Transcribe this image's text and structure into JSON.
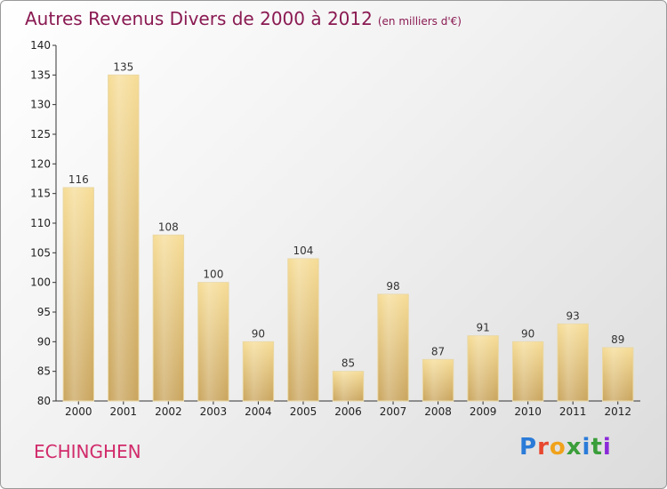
{
  "title": "Autres Revenus Divers de 2000 à 2012",
  "subtitle": "(en milliers d'€)",
  "commune": "ECHINGHEN",
  "logo": {
    "text": "Proxiti",
    "colors": [
      "#2a7bd8",
      "#e8472e",
      "#f0a21b",
      "#3a9e3a",
      "#2a7bd8",
      "#3a9e3a",
      "#8a2ad8"
    ]
  },
  "colors": {
    "title": "#8a1a52",
    "commune": "#d12a6a",
    "bar_light": "#f6dc95",
    "bar_dark": "#c9a45c"
  },
  "chart_data": {
    "type": "bar",
    "title": "Autres Revenus Divers de 2000 à 2012",
    "subtitle": "(en milliers d'€)",
    "categories": [
      "2000",
      "2001",
      "2002",
      "2003",
      "2004",
      "2005",
      "2006",
      "2007",
      "2008",
      "2009",
      "2010",
      "2011",
      "2012"
    ],
    "values": [
      116,
      135,
      108,
      100,
      90,
      104,
      85,
      98,
      87,
      91,
      90,
      93,
      89
    ],
    "ylim": [
      80,
      140
    ],
    "yticks": [
      80,
      85,
      90,
      95,
      100,
      105,
      110,
      115,
      120,
      125,
      130,
      135,
      140
    ],
    "grid": false,
    "data_labels": true
  }
}
